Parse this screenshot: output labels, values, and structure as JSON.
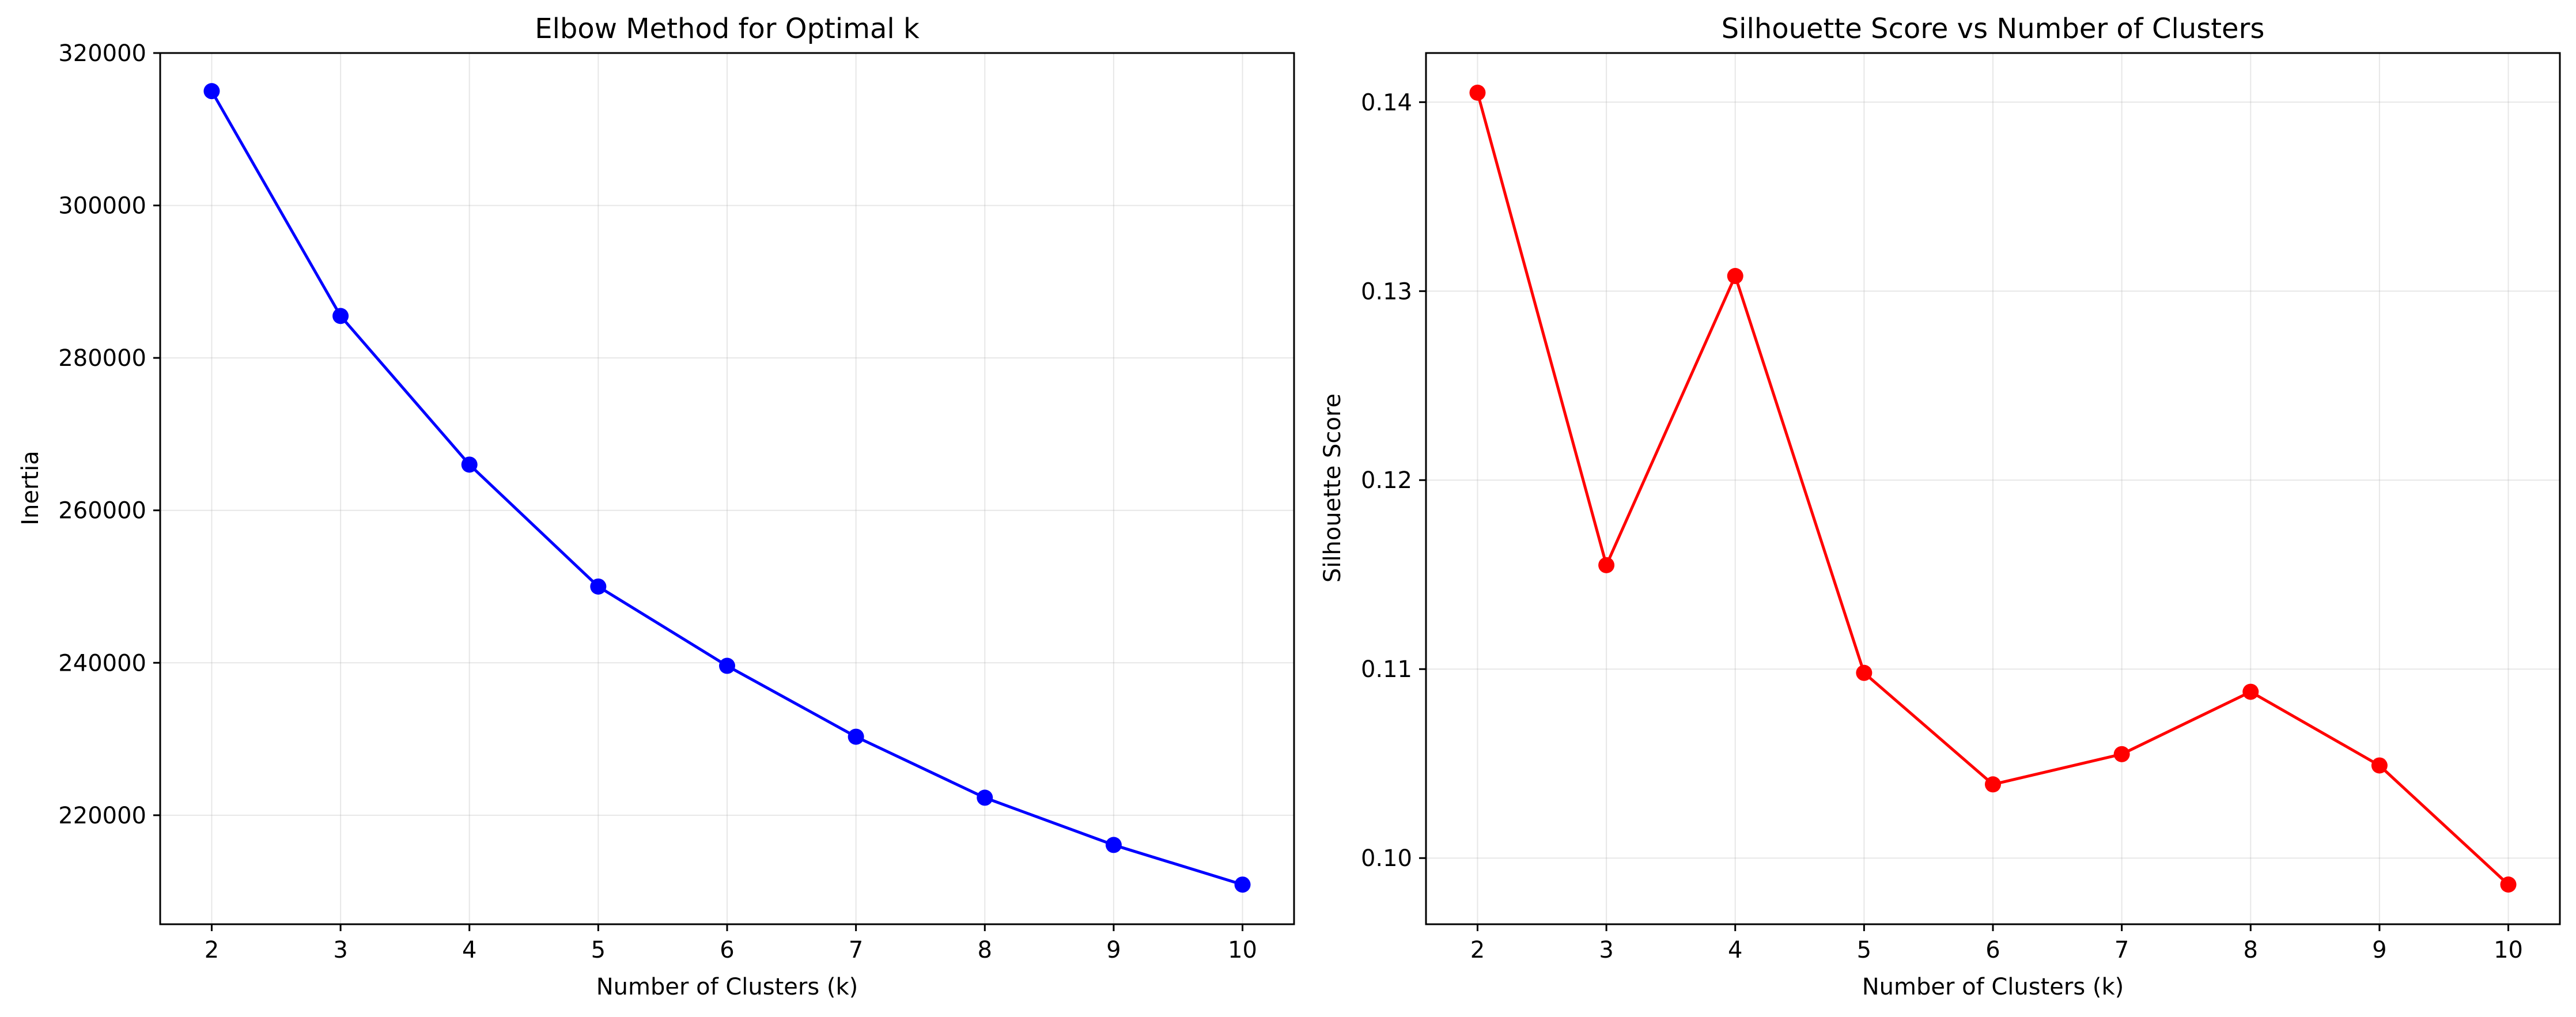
{
  "chart_data": [
    {
      "type": "line",
      "title": "Elbow Method for Optimal k",
      "xlabel": "Number of Clusters (k)",
      "ylabel": "Inertia",
      "x": [
        2,
        3,
        4,
        5,
        6,
        7,
        8,
        9,
        10
      ],
      "series": [
        {
          "values": [
            315000,
            285500,
            266000,
            250000,
            239600,
            230300,
            222300,
            216100,
            210900
          ],
          "color": "#0000ff",
          "marker": "circle"
        }
      ],
      "xticks": [
        "2",
        "3",
        "4",
        "5",
        "6",
        "7",
        "8",
        "9",
        "10"
      ],
      "yticks": [
        "220000",
        "240000",
        "260000",
        "280000",
        "300000",
        "320000"
      ],
      "ytick_values": [
        220000,
        240000,
        260000,
        280000,
        300000,
        320000
      ],
      "xlim": [
        1.6,
        10.4
      ],
      "ylim": [
        205700,
        320000
      ],
      "grid": true
    },
    {
      "type": "line",
      "title": "Silhouette Score vs Number of Clusters",
      "xlabel": "Number of Clusters (k)",
      "ylabel": "Silhouette Score",
      "x": [
        2,
        3,
        4,
        5,
        6,
        7,
        8,
        9,
        10
      ],
      "series": [
        {
          "values": [
            0.1405,
            0.1155,
            0.1308,
            0.1098,
            0.1039,
            0.1055,
            0.1088,
            0.1049,
            0.0986
          ],
          "color": "#ff0000",
          "marker": "circle"
        }
      ],
      "xticks": [
        "2",
        "3",
        "4",
        "5",
        "6",
        "7",
        "8",
        "9",
        "10"
      ],
      "yticks": [
        "0.10",
        "0.11",
        "0.12",
        "0.13",
        "0.14"
      ],
      "ytick_values": [
        0.1,
        0.11,
        0.12,
        0.13,
        0.14
      ],
      "xlim": [
        1.6,
        10.4
      ],
      "ylim": [
        0.0965,
        0.1426
      ],
      "grid": true
    }
  ]
}
